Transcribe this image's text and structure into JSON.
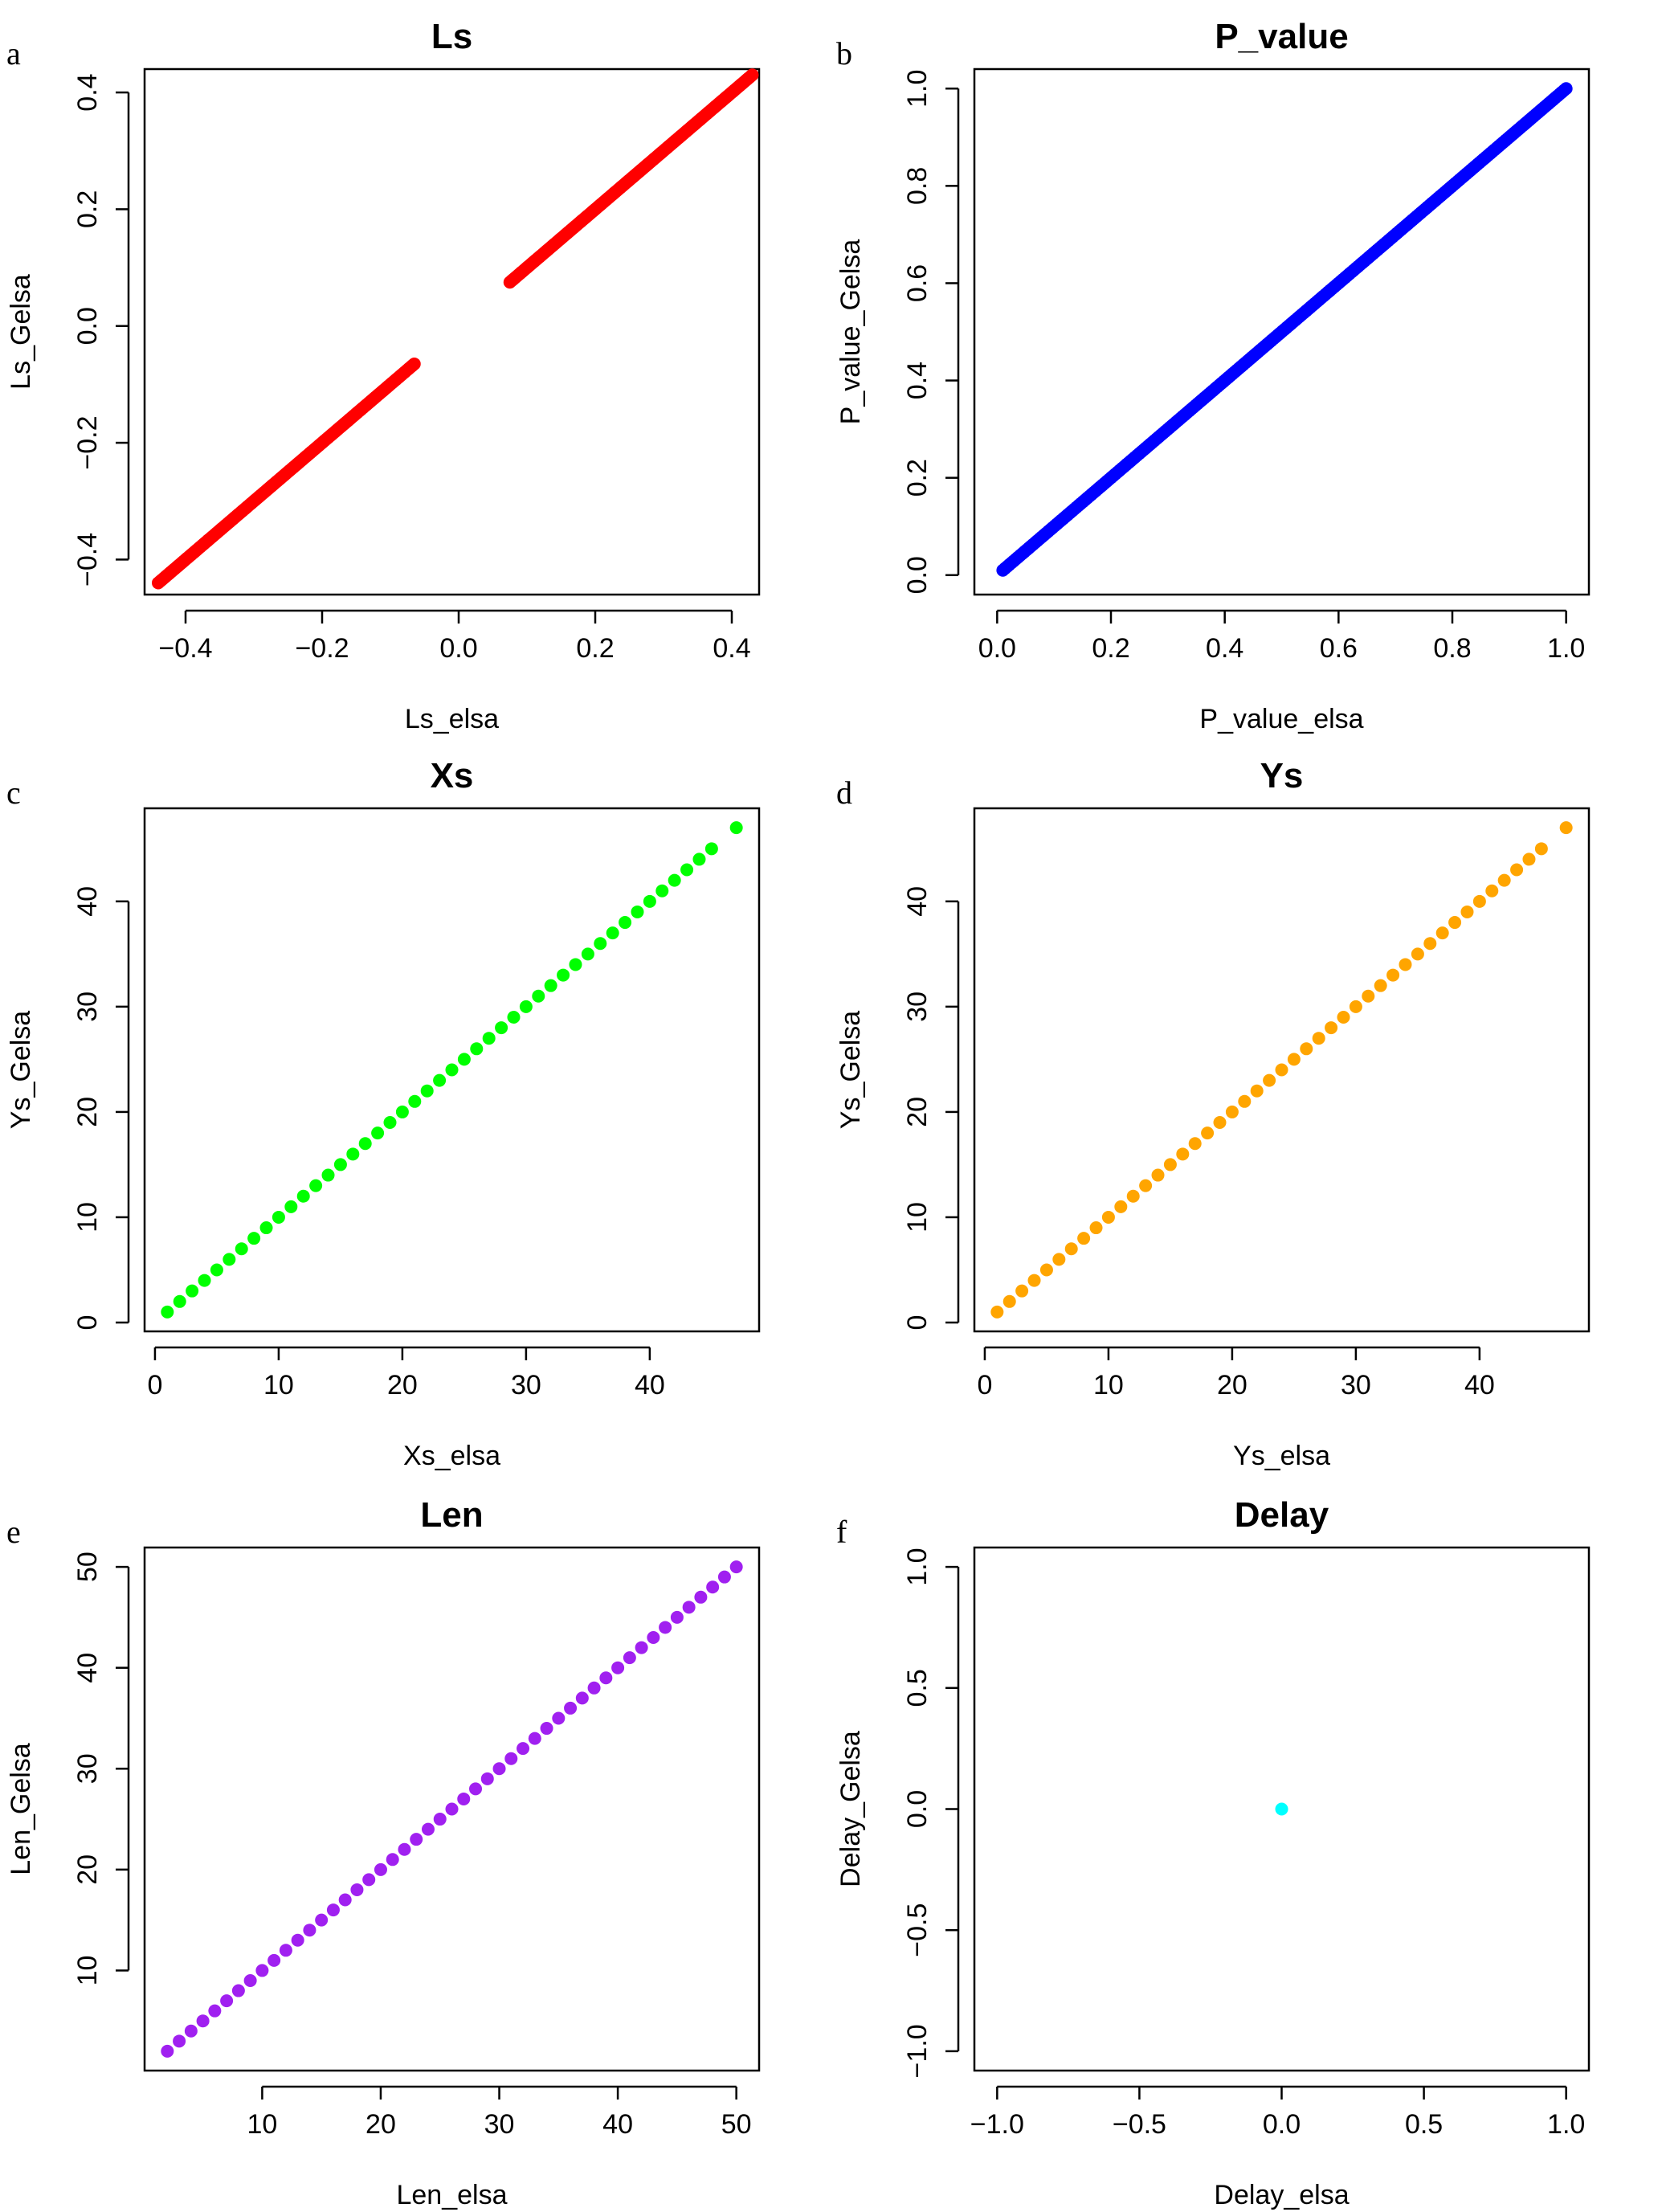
{
  "chart_data": [
    {
      "panel": "a",
      "type": "scatter",
      "title": "Ls",
      "xlabel": "Ls_elsa",
      "ylabel": "Ls_Gelsa",
      "xlim": [
        -0.46,
        0.44
      ],
      "ylim": [
        -0.46,
        0.44
      ],
      "xticks": [
        -0.4,
        -0.2,
        0.0,
        0.2,
        0.4
      ],
      "xtick_labels": [
        "−0.4",
        "−0.2",
        "0.0",
        "0.2",
        "0.4"
      ],
      "yticks": [
        -0.4,
        -0.2,
        0.0,
        0.2,
        0.4
      ],
      "ytick_labels": [
        "−0.4",
        "−0.2",
        "0.0",
        "0.2",
        "0.4"
      ],
      "color": "#ff0000",
      "series": [
        {
          "description_range": "dense points along y = x",
          "segments": [
            [
              -0.44,
              -0.065
            ],
            [
              0.075,
              0.43
            ]
          ]
        }
      ],
      "x": [
        -0.44,
        -0.42,
        -0.4,
        -0.38,
        -0.36,
        -0.34,
        -0.32,
        -0.3,
        -0.28,
        -0.26,
        -0.24,
        -0.22,
        -0.2,
        -0.18,
        -0.16,
        -0.14,
        -0.12,
        -0.1,
        -0.08,
        -0.065,
        0.075,
        0.09,
        0.11,
        0.13,
        0.15,
        0.17,
        0.19,
        0.21,
        0.23,
        0.25,
        0.27,
        0.29,
        0.31,
        0.33,
        0.35,
        0.37,
        0.39,
        0.41,
        0.43
      ],
      "y": [
        -0.44,
        -0.42,
        -0.4,
        -0.38,
        -0.36,
        -0.34,
        -0.32,
        -0.3,
        -0.28,
        -0.26,
        -0.24,
        -0.22,
        -0.2,
        -0.18,
        -0.16,
        -0.14,
        -0.12,
        -0.1,
        -0.08,
        -0.065,
        0.075,
        0.09,
        0.11,
        0.13,
        0.15,
        0.17,
        0.19,
        0.21,
        0.23,
        0.25,
        0.27,
        0.29,
        0.31,
        0.33,
        0.35,
        0.37,
        0.39,
        0.41,
        0.43
      ],
      "grid": false
    },
    {
      "panel": "b",
      "type": "scatter",
      "title": "P_value",
      "xlabel": "P_value_elsa",
      "ylabel": "P_value_Gelsa",
      "xlim": [
        -0.04,
        1.04
      ],
      "ylim": [
        -0.04,
        1.04
      ],
      "xticks": [
        0.0,
        0.2,
        0.4,
        0.6,
        0.8,
        1.0
      ],
      "xtick_labels": [
        "0.0",
        "0.2",
        "0.4",
        "0.6",
        "0.8",
        "1.0"
      ],
      "yticks": [
        0.0,
        0.2,
        0.4,
        0.6,
        0.8,
        1.0
      ],
      "ytick_labels": [
        "0.0",
        "0.2",
        "0.4",
        "0.6",
        "0.8",
        "1.0"
      ],
      "color": "#0000ff",
      "x": [
        0.01,
        0.04,
        0.07,
        0.1,
        0.13,
        0.16,
        0.19,
        0.22,
        0.25,
        0.28,
        0.31,
        0.34,
        0.37,
        0.4,
        0.43,
        0.46,
        0.49,
        0.52,
        0.55,
        0.58,
        0.61,
        0.64,
        0.67,
        0.7,
        0.73,
        0.76,
        0.79,
        0.82,
        0.85,
        0.88,
        0.91,
        0.94,
        0.97,
        1.0
      ],
      "y": [
        0.01,
        0.04,
        0.07,
        0.1,
        0.13,
        0.16,
        0.19,
        0.22,
        0.25,
        0.28,
        0.31,
        0.34,
        0.37,
        0.4,
        0.43,
        0.46,
        0.49,
        0.52,
        0.55,
        0.58,
        0.61,
        0.64,
        0.67,
        0.7,
        0.73,
        0.76,
        0.79,
        0.82,
        0.85,
        0.88,
        0.91,
        0.94,
        0.97,
        1.0
      ],
      "grid": false
    },
    {
      "panel": "c",
      "type": "scatter",
      "title": "Xs",
      "xlabel": "Xs_elsa",
      "ylabel": "Ys_Gelsa",
      "xlim": [
        -0.84,
        48.84
      ],
      "ylim": [
        -0.84,
        48.84
      ],
      "xticks": [
        0,
        10,
        20,
        30,
        40
      ],
      "xtick_labels": [
        "0",
        "10",
        "20",
        "30",
        "40"
      ],
      "yticks": [
        0,
        10,
        20,
        30,
        40
      ],
      "ytick_labels": [
        "0",
        "10",
        "20",
        "30",
        "40"
      ],
      "color": "#00ff00",
      "x": [
        1,
        2,
        3,
        4,
        5,
        6,
        7,
        8,
        9,
        10,
        11,
        12,
        13,
        14,
        15,
        16,
        17,
        18,
        19,
        20,
        21,
        22,
        23,
        24,
        25,
        26,
        27,
        28,
        29,
        30,
        31,
        32,
        33,
        34,
        35,
        36,
        37,
        38,
        39,
        40,
        41,
        42,
        43,
        44,
        45,
        47
      ],
      "y": [
        1,
        2,
        3,
        4,
        5,
        6,
        7,
        8,
        9,
        10,
        11,
        12,
        13,
        14,
        15,
        16,
        17,
        18,
        19,
        20,
        21,
        22,
        23,
        24,
        25,
        26,
        27,
        28,
        29,
        30,
        31,
        32,
        33,
        34,
        35,
        36,
        37,
        38,
        39,
        40,
        41,
        42,
        43,
        44,
        45,
        47
      ],
      "grid": false
    },
    {
      "panel": "d",
      "type": "scatter",
      "title": "Ys",
      "xlabel": "Ys_elsa",
      "ylabel": "Ys_Gelsa",
      "xlim": [
        -0.84,
        48.84
      ],
      "ylim": [
        -0.84,
        48.84
      ],
      "xticks": [
        0,
        10,
        20,
        30,
        40
      ],
      "xtick_labels": [
        "0",
        "10",
        "20",
        "30",
        "40"
      ],
      "yticks": [
        0,
        10,
        20,
        30,
        40
      ],
      "ytick_labels": [
        "0",
        "10",
        "20",
        "30",
        "40"
      ],
      "color": "#ffa500",
      "x": [
        1,
        2,
        3,
        4,
        5,
        6,
        7,
        8,
        9,
        10,
        11,
        12,
        13,
        14,
        15,
        16,
        17,
        18,
        19,
        20,
        21,
        22,
        23,
        24,
        25,
        26,
        27,
        28,
        29,
        30,
        31,
        32,
        33,
        34,
        35,
        36,
        37,
        38,
        39,
        40,
        41,
        42,
        43,
        44,
        45,
        47
      ],
      "y": [
        1,
        2,
        3,
        4,
        5,
        6,
        7,
        8,
        9,
        10,
        11,
        12,
        13,
        14,
        15,
        16,
        17,
        18,
        19,
        20,
        21,
        22,
        23,
        24,
        25,
        26,
        27,
        28,
        29,
        30,
        31,
        32,
        33,
        34,
        35,
        36,
        37,
        38,
        39,
        40,
        41,
        42,
        43,
        44,
        45,
        47
      ],
      "grid": false
    },
    {
      "panel": "e",
      "type": "scatter",
      "title": "Len",
      "xlabel": "Len_elsa",
      "ylabel": "Len_Gelsa",
      "xlim": [
        0.08,
        51.92
      ],
      "ylim": [
        0.08,
        51.92
      ],
      "xticks": [
        10,
        20,
        30,
        40,
        50
      ],
      "xtick_labels": [
        "10",
        "20",
        "30",
        "40",
        "50"
      ],
      "yticks": [
        10,
        20,
        30,
        40,
        50
      ],
      "ytick_labels": [
        "10",
        "20",
        "30",
        "40",
        "50"
      ],
      "color": "#a020f0",
      "x": [
        2,
        3,
        4,
        5,
        6,
        7,
        8,
        9,
        10,
        11,
        12,
        13,
        14,
        15,
        16,
        17,
        18,
        19,
        20,
        21,
        22,
        23,
        24,
        25,
        26,
        27,
        28,
        29,
        30,
        31,
        32,
        33,
        34,
        35,
        36,
        37,
        38,
        39,
        40,
        41,
        42,
        43,
        44,
        45,
        46,
        47,
        48,
        49,
        50
      ],
      "y": [
        2,
        3,
        4,
        5,
        6,
        7,
        8,
        9,
        10,
        11,
        12,
        13,
        14,
        15,
        16,
        17,
        18,
        19,
        20,
        21,
        22,
        23,
        24,
        25,
        26,
        27,
        28,
        29,
        30,
        31,
        32,
        33,
        34,
        35,
        36,
        37,
        38,
        39,
        40,
        41,
        42,
        43,
        44,
        45,
        46,
        47,
        48,
        49,
        50
      ],
      "grid": false
    },
    {
      "panel": "f",
      "type": "scatter",
      "title": "Delay",
      "xlabel": "Delay_elsa",
      "ylabel": "Delay_Gelsa",
      "xlim": [
        -1.08,
        1.08
      ],
      "ylim": [
        -1.08,
        1.08
      ],
      "xticks": [
        -1.0,
        -0.5,
        0.0,
        0.5,
        1.0
      ],
      "xtick_labels": [
        "−1.0",
        "−0.5",
        "0.0",
        "0.5",
        "1.0"
      ],
      "yticks": [
        -1.0,
        -0.5,
        0.0,
        0.5,
        1.0
      ],
      "ytick_labels": [
        "−1.0",
        "−0.5",
        "0.0",
        "0.5",
        "1.0"
      ],
      "color": "#00ffff",
      "x": [
        0
      ],
      "y": [
        0
      ],
      "grid": false
    }
  ]
}
